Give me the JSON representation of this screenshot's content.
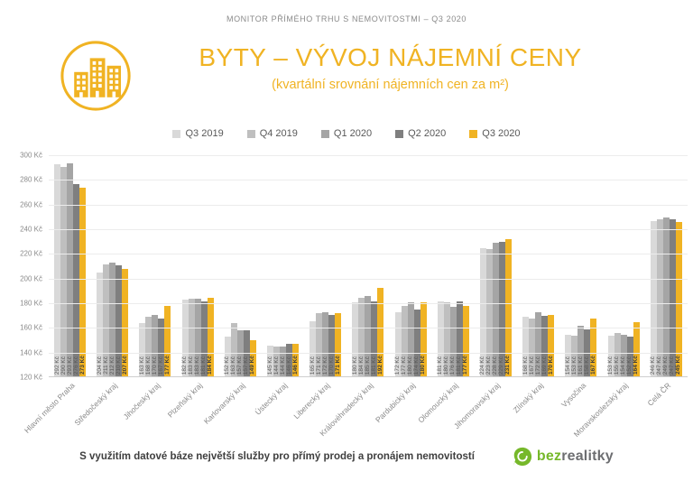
{
  "header": {
    "monitor_label": "MONITOR PŘÍMÉHO TRHU S NEMOVITOSTMI – Q3 2020"
  },
  "title": {
    "main": "BYTY – VÝVOJ NÁJEMNÍ CENY",
    "subtitle": "(kvartální srovnání nájemních cen za m²)"
  },
  "icons": {
    "header_icon": "buildings-in-circle",
    "brand_icon": "bezrealitky-green-leaf"
  },
  "colors": {
    "accent_gold": "#f0b323",
    "brand_green": "#76b82a",
    "brand_gray_text": "#6d6e71",
    "axis_text": "#8a8a8a"
  },
  "chart_data": {
    "type": "bar",
    "title": "BYTY – VÝVOJ NÁJEMNÍ CENY (kvartální srovnání nájemních cen za m²)",
    "xlabel": "",
    "ylabel": "Kč",
    "ylim": [
      120,
      300
    ],
    "ytick_step": 20,
    "ytick_suffix": " Kč",
    "value_label_suffix": " Kč",
    "grid": true,
    "legend_position": "top",
    "categories": [
      "Hlavní město Praha",
      "Středočeský kraj",
      "Jihočeský kraj",
      "Plzeňský kraj",
      "Karlovarský kraj",
      "Ústecký kraj",
      "Liberecký kraj",
      "Královéhradecký kraj",
      "Pardubický kraj",
      "Olomoucký kraj",
      "Jihomoravský kraj",
      "Zlínský kraj",
      "Vysočina",
      "Moravskoslezský kraj",
      "Celá ČR"
    ],
    "series": [
      {
        "name": "Q3 2019",
        "color": "#d9d9d9",
        "values": [
          292,
          204,
          163,
          182,
          152,
          145,
          165,
          180,
          172,
          181,
          224,
          168,
          154,
          153,
          246
        ]
      },
      {
        "name": "Q4 2019",
        "color": "#bfbfbf",
        "values": [
          290,
          211,
          168,
          183,
          163,
          144,
          171,
          184,
          177,
          180,
          223,
          167,
          153,
          155,
          247
        ]
      },
      {
        "name": "Q1 2020",
        "color": "#a5a5a5",
        "values": [
          293,
          212,
          170,
          183,
          157,
          144,
          172,
          185,
          180,
          176,
          228,
          172,
          161,
          154,
          249
        ]
      },
      {
        "name": "Q2 2020",
        "color": "#7f7f7f",
        "values": [
          276,
          210,
          167,
          181,
          157,
          146,
          170,
          181,
          174,
          181,
          229,
          169,
          158,
          152,
          247
        ]
      },
      {
        "name": "Q3 2020",
        "color": "#f0b323",
        "values": [
          273,
          207,
          177,
          184,
          149,
          146,
          171,
          192,
          180,
          177,
          231,
          170,
          167,
          164,
          245
        ]
      }
    ]
  },
  "footer": {
    "note": "S využitím datové báze největší služby pro přímý prodej a pronájem nemovitostí",
    "brand_bez": "bez",
    "brand_realitky": "realitky"
  }
}
